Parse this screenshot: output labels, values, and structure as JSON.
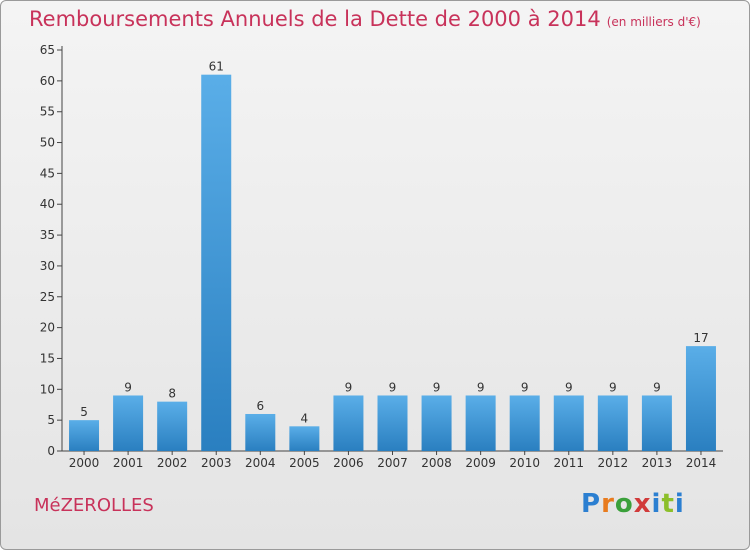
{
  "header": {
    "title": "Remboursements Annuels de la Dette de 2000 à 2014",
    "unit": "(en milliers d'€)"
  },
  "footer": {
    "commune": "MéZEROLLES",
    "logo": "Proxiti"
  },
  "colors": {
    "title": "#c8325a",
    "bar_light": "#5aaee8",
    "bar_dark": "#2a7fc0",
    "logo": [
      "#2b7fd1",
      "#e87b1e",
      "#3aa03a",
      "#d13a3a",
      "#2b7fd1",
      "#8cbf2a",
      "#2b7fd1"
    ]
  },
  "chart_data": {
    "type": "bar",
    "title": "Remboursements Annuels de la Dette de 2000 à 2014",
    "unit": "(en milliers d'€)",
    "categories": [
      "2000",
      "2001",
      "2002",
      "2003",
      "2004",
      "2005",
      "2006",
      "2007",
      "2008",
      "2009",
      "2010",
      "2011",
      "2012",
      "2013",
      "2014"
    ],
    "values": [
      5,
      9,
      8,
      61,
      6,
      4,
      9,
      9,
      9,
      9,
      9,
      9,
      9,
      9,
      17
    ],
    "ylim": [
      0,
      65
    ],
    "yticks": [
      0,
      5,
      10,
      15,
      20,
      25,
      30,
      35,
      40,
      45,
      50,
      55,
      60,
      65
    ],
    "grid": false,
    "data_labels": true
  }
}
